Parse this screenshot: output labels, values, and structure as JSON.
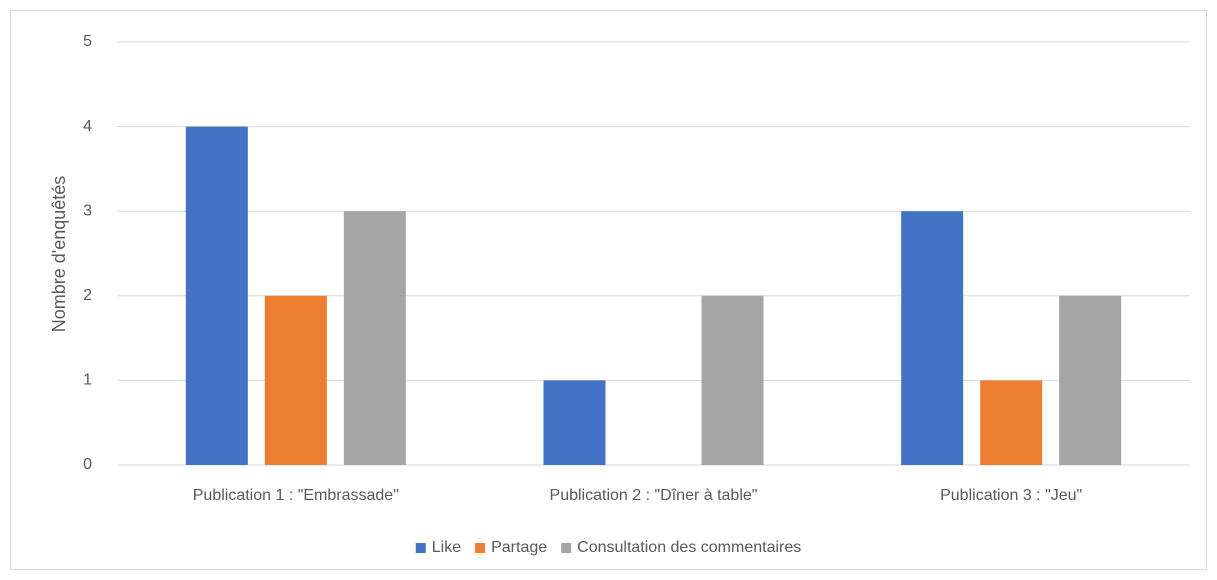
{
  "chart_data": {
    "type": "bar",
    "y_label": "Nombre d'enquêtés",
    "categories": [
      "Publication 1 : \"Embrassade\"",
      "Publication 2 : \"Dîner à table\"",
      "Publication 3 : \"Jeu\""
    ],
    "series": [
      {
        "name": "Like",
        "color": "#4472c4",
        "values": [
          4,
          1,
          3
        ]
      },
      {
        "name": "Partage",
        "color": "#ed7d31",
        "values": [
          2,
          0,
          1
        ]
      },
      {
        "name": "Consultation des commentaires",
        "color": "#a5a5a5",
        "values": [
          3,
          2,
          2
        ]
      }
    ],
    "ylim": [
      0,
      5
    ],
    "yticks": [
      0,
      1,
      2,
      3,
      4,
      5
    ],
    "grid": true,
    "legend": "bottom"
  }
}
